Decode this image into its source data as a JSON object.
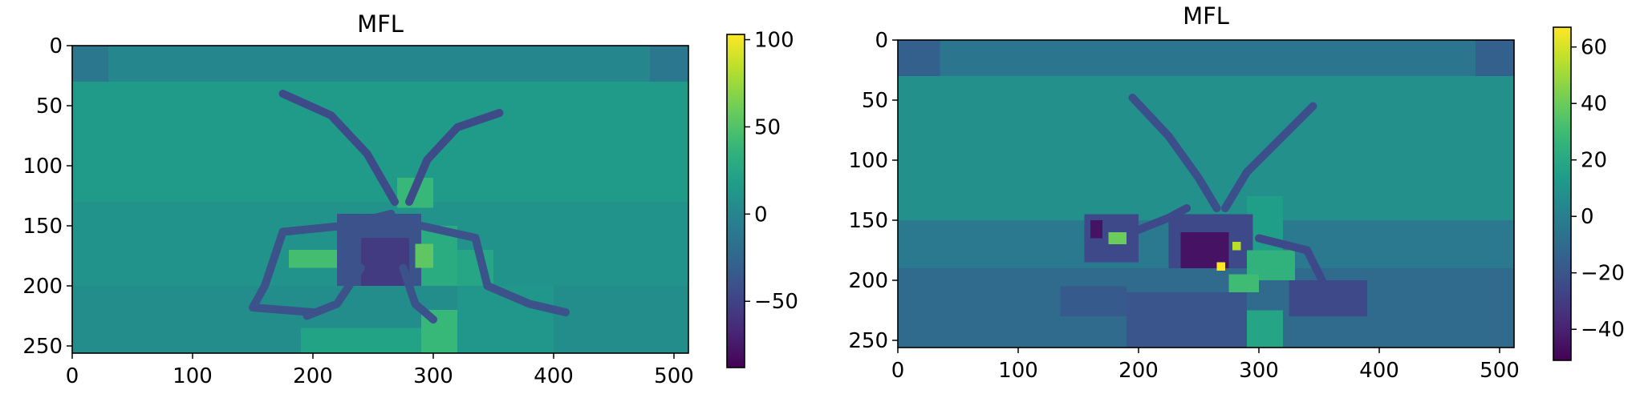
{
  "chart_data": [
    {
      "type": "heatmap",
      "title": "MFL",
      "colormap": "viridis",
      "xlim": [
        0,
        512
      ],
      "ylim": [
        256,
        0
      ],
      "xticks": [
        0,
        100,
        200,
        300,
        400,
        500
      ],
      "yticks": [
        0,
        50,
        100,
        150,
        200,
        250
      ],
      "xtick_labels": [
        "0",
        "100",
        "200",
        "300",
        "400",
        "500"
      ],
      "ytick_labels": [
        "0",
        "50",
        "100",
        "150",
        "200",
        "250"
      ],
      "colorbar": {
        "vmin": -88,
        "vmax": 103,
        "ticks": [
          100,
          50,
          0,
          -50
        ],
        "tick_labels": [
          "100",
          "50",
          "0",
          "−50"
        ]
      },
      "background_value": 16,
      "regions": [
        {
          "x": [
            0,
            512
          ],
          "y": [
            0,
            30
          ],
          "value": 0
        },
        {
          "x": [
            0,
            30
          ],
          "y": [
            0,
            30
          ],
          "value": -12
        },
        {
          "x": [
            480,
            512
          ],
          "y": [
            0,
            30
          ],
          "value": -12
        },
        {
          "x": [
            0,
            512
          ],
          "y": [
            130,
            200
          ],
          "value": 10
        },
        {
          "x": [
            0,
            512
          ],
          "y": [
            200,
            256
          ],
          "value": 5
        },
        {
          "x": [
            190,
            290
          ],
          "y": [
            235,
            256
          ],
          "value": 22
        },
        {
          "x": [
            290,
            320
          ],
          "y": [
            220,
            256
          ],
          "value": 40
        },
        {
          "x": [
            320,
            400
          ],
          "y": [
            200,
            256
          ],
          "value": 12
        },
        {
          "x": [
            290,
            320
          ],
          "y": [
            150,
            200
          ],
          "value": 30
        },
        {
          "x": [
            320,
            350
          ],
          "y": [
            170,
            200
          ],
          "value": 25
        },
        {
          "x": [
            220,
            290
          ],
          "y": [
            140,
            200
          ],
          "value": -40
        },
        {
          "x": [
            240,
            280
          ],
          "y": [
            160,
            200
          ],
          "value": -55
        },
        {
          "x": [
            180,
            220
          ],
          "y": [
            170,
            185
          ],
          "value": 45
        },
        {
          "x": [
            270,
            300
          ],
          "y": [
            110,
            135
          ],
          "value": 40
        },
        {
          "x": [
            285,
            300
          ],
          "y": [
            165,
            185
          ],
          "value": 55
        }
      ],
      "strokes": [
        {
          "points": [
            [
              175,
              40
            ],
            [
              215,
              58
            ],
            [
              245,
              90
            ],
            [
              268,
              130
            ]
          ],
          "value": -45
        },
        {
          "points": [
            [
              355,
              56
            ],
            [
              320,
              68
            ],
            [
              295,
              95
            ],
            [
              280,
              130
            ]
          ],
          "value": -45
        },
        {
          "points": [
            [
              265,
              140
            ],
            [
              225,
              150
            ],
            [
              175,
              155
            ],
            [
              160,
              200
            ],
            [
              150,
              218
            ],
            [
              200,
              222
            ]
          ],
          "value": -40
        },
        {
          "points": [
            [
              290,
              150
            ],
            [
              335,
              160
            ],
            [
              345,
              200
            ],
            [
              380,
              215
            ],
            [
              410,
              222
            ]
          ],
          "value": -40
        },
        {
          "points": [
            [
              240,
              185
            ],
            [
              220,
              215
            ],
            [
              195,
              225
            ]
          ],
          "value": -40
        },
        {
          "points": [
            [
              275,
              185
            ],
            [
              285,
              215
            ],
            [
              300,
              228
            ]
          ],
          "value": -40
        }
      ]
    },
    {
      "type": "heatmap",
      "title": "MFL",
      "colormap": "viridis",
      "xlim": [
        0,
        512
      ],
      "ylim": [
        256,
        0
      ],
      "xticks": [
        0,
        100,
        200,
        300,
        400,
        500
      ],
      "yticks": [
        0,
        50,
        100,
        150,
        200,
        250
      ],
      "xtick_labels": [
        "0",
        "100",
        "200",
        "300",
        "400",
        "500"
      ],
      "ytick_labels": [
        "0",
        "50",
        "100",
        "150",
        "200",
        "250"
      ],
      "colorbar": {
        "vmin": -51,
        "vmax": 67,
        "ticks": [
          60,
          40,
          20,
          0,
          -20,
          -40
        ],
        "tick_labels": [
          "60",
          "40",
          "20",
          "0",
          "−20",
          "−40"
        ]
      },
      "background_value": 8,
      "regions": [
        {
          "x": [
            0,
            512
          ],
          "y": [
            0,
            30
          ],
          "value": -5
        },
        {
          "x": [
            0,
            35
          ],
          "y": [
            0,
            30
          ],
          "value": -15
        },
        {
          "x": [
            480,
            512
          ],
          "y": [
            0,
            30
          ],
          "value": -15
        },
        {
          "x": [
            0,
            512
          ],
          "y": [
            150,
            256
          ],
          "value": -3
        },
        {
          "x": [
            0,
            512
          ],
          "y": [
            190,
            256
          ],
          "value": -10
        },
        {
          "x": [
            190,
            290
          ],
          "y": [
            210,
            256
          ],
          "value": -20
        },
        {
          "x": [
            290,
            320
          ],
          "y": [
            225,
            256
          ],
          "value": 18
        },
        {
          "x": [
            290,
            320
          ],
          "y": [
            130,
            175
          ],
          "value": 15
        },
        {
          "x": [
            155,
            200
          ],
          "y": [
            145,
            185
          ],
          "value": -25
        },
        {
          "x": [
            225,
            295
          ],
          "y": [
            145,
            190
          ],
          "value": -25
        },
        {
          "x": [
            235,
            275
          ],
          "y": [
            160,
            190
          ],
          "value": -45
        },
        {
          "x": [
            290,
            330
          ],
          "y": [
            175,
            200
          ],
          "value": 25
        },
        {
          "x": [
            275,
            300
          ],
          "y": [
            195,
            210
          ],
          "value": 30
        },
        {
          "x": [
            325,
            390
          ],
          "y": [
            200,
            230
          ],
          "value": -25
        },
        {
          "x": [
            135,
            190
          ],
          "y": [
            205,
            230
          ],
          "value": -18
        },
        {
          "x": [
            160,
            170
          ],
          "y": [
            150,
            165
          ],
          "value": -45
        },
        {
          "x": [
            175,
            190
          ],
          "y": [
            160,
            170
          ],
          "value": 40
        },
        {
          "x": [
            265,
            272
          ],
          "y": [
            185,
            192
          ],
          "value": 67
        },
        {
          "x": [
            278,
            285
          ],
          "y": [
            168,
            175
          ],
          "value": 55
        }
      ],
      "strokes": [
        {
          "points": [
            [
              195,
              48
            ],
            [
              225,
              80
            ],
            [
              250,
              115
            ],
            [
              265,
              140
            ]
          ],
          "value": -22
        },
        {
          "points": [
            [
              345,
              55
            ],
            [
              315,
              85
            ],
            [
              290,
              110
            ],
            [
              272,
              140
            ]
          ],
          "value": -22
        },
        {
          "points": [
            [
              240,
              140
            ],
            [
              225,
              148
            ],
            [
              200,
              158
            ]
          ],
          "value": -25
        },
        {
          "points": [
            [
              300,
              165
            ],
            [
              340,
              175
            ],
            [
              355,
              205
            ],
            [
              385,
              220
            ]
          ],
          "value": -25
        }
      ]
    }
  ]
}
